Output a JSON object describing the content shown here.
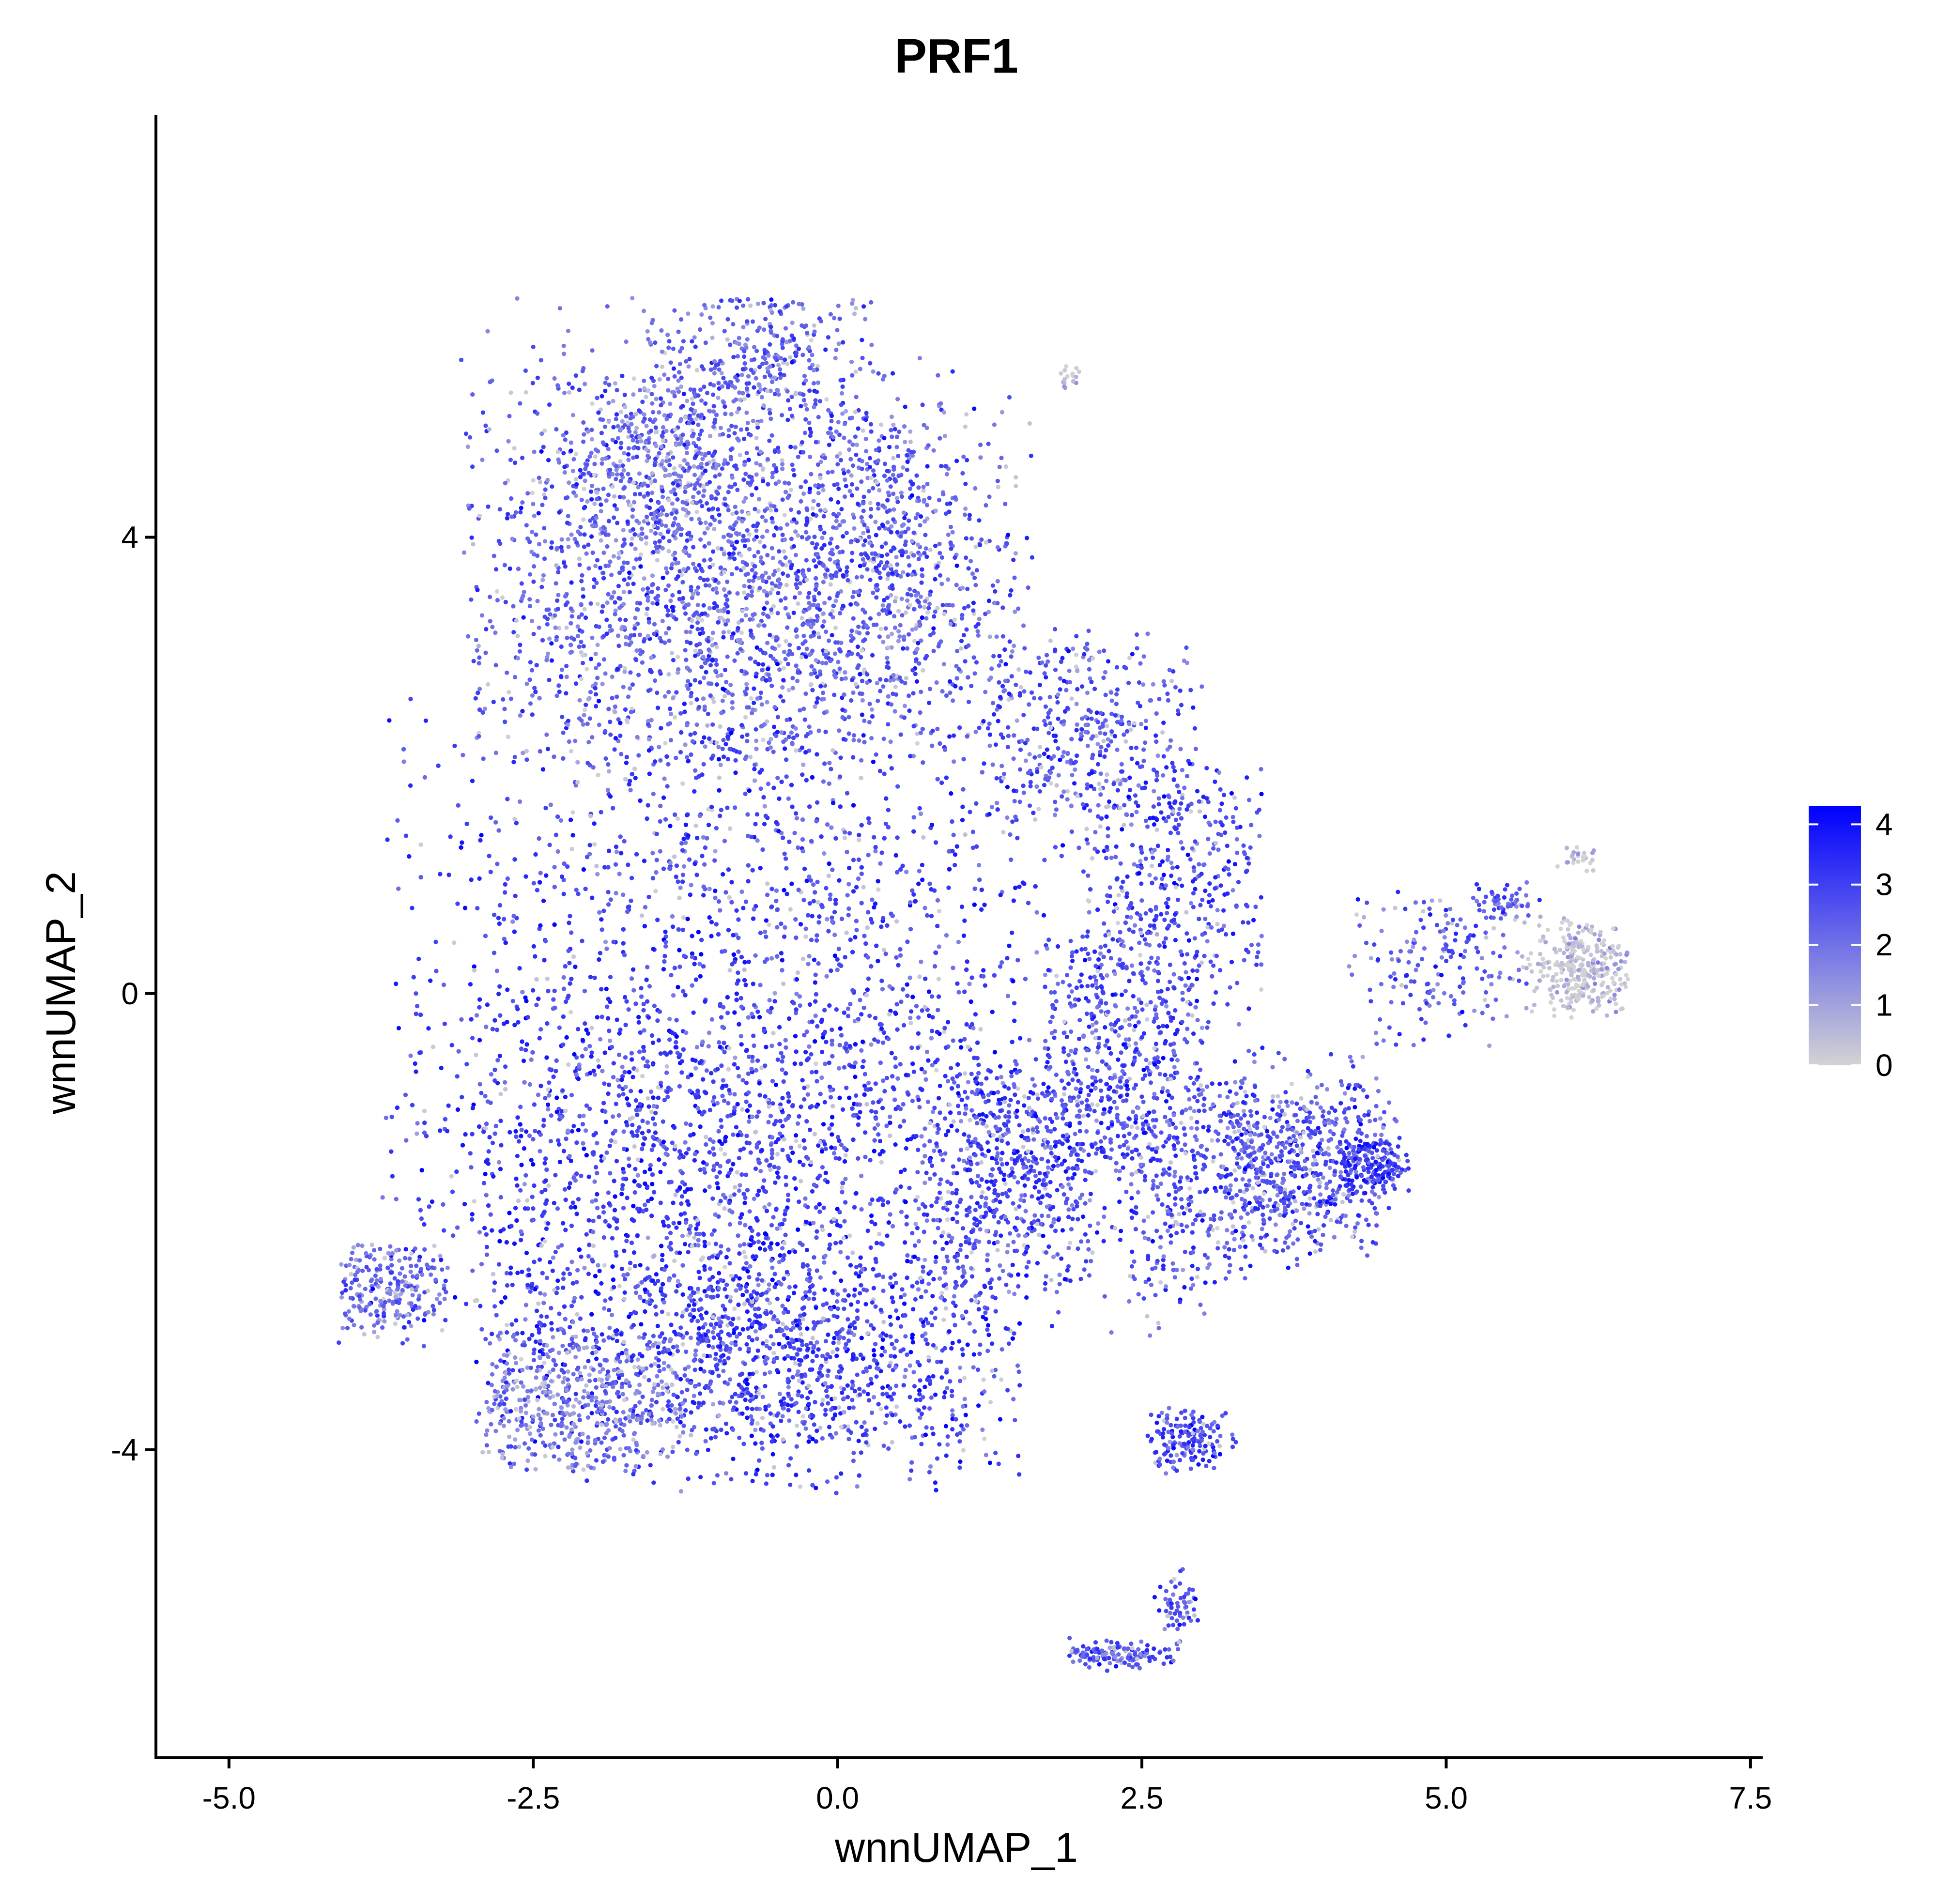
{
  "chart_data": {
    "type": "scatter",
    "title": "PRF1",
    "xlabel": "wnnUMAP_1",
    "ylabel": "wnnUMAP_2",
    "xlim": [
      -5.6,
      7.6
    ],
    "ylim": [
      -6.7,
      7.7
    ],
    "x_ticks": [
      -5.0,
      -2.5,
      0.0,
      2.5,
      5.0,
      7.5
    ],
    "x_tick_labels": [
      "-5.0",
      "-2.5",
      "0.0",
      "2.5",
      "5.0",
      "7.5"
    ],
    "y_ticks": [
      -4,
      0,
      4
    ],
    "y_tick_labels": [
      "-4",
      "0",
      "4"
    ],
    "grid": false,
    "legend": {
      "type": "colorbar",
      "placement": "right",
      "min": 0,
      "max": 4.3,
      "ticks": [
        0,
        1,
        2,
        3,
        4
      ],
      "tick_labels": [
        "0",
        "1",
        "2",
        "3",
        "4"
      ],
      "color_low": "#D3D3D3",
      "color_high": "#0000FF"
    },
    "regions": [
      {
        "cx": -1.0,
        "cy": 3.6,
        "sx": 1.1,
        "sy": 1.0,
        "n": 2400,
        "mean_expr": 2.4,
        "clip": [
          -3.1,
          1.6,
          2.0,
          6.1
        ]
      },
      {
        "cx": -0.6,
        "cy": 5.6,
        "sx": 0.5,
        "sy": 0.4,
        "n": 280,
        "mean_expr": 2.3,
        "clip": [
          -1.6,
          0.4,
          5.0,
          6.1
        ]
      },
      {
        "cx": 0.5,
        "cy": 3.9,
        "sx": 0.5,
        "sy": 0.8,
        "n": 420,
        "mean_expr": 2.5,
        "clip": [
          -0.3,
          1.5,
          2.5,
          5.2
        ]
      },
      {
        "cx": -1.5,
        "cy": 4.8,
        "sx": 0.5,
        "sy": 0.4,
        "n": 300,
        "mean_expr": 2.0,
        "clip": [
          -2.6,
          -0.4,
          4.0,
          5.5
        ]
      },
      {
        "cx": -0.6,
        "cy": 0.6,
        "sx": 1.6,
        "sy": 1.2,
        "n": 3200,
        "mean_expr": 2.9,
        "clip": [
          -3.7,
          3.4,
          -1.4,
          2.8
        ]
      },
      {
        "cx": 2.0,
        "cy": 2.3,
        "sx": 0.6,
        "sy": 0.5,
        "n": 380,
        "mean_expr": 2.7,
        "clip": [
          1.2,
          3.0,
          1.5,
          3.2
        ]
      },
      {
        "cx": 2.8,
        "cy": 1.0,
        "sx": 0.5,
        "sy": 0.6,
        "n": 380,
        "mean_expr": 2.8,
        "clip": [
          2.0,
          3.5,
          -0.3,
          2.0
        ]
      },
      {
        "cx": -1.1,
        "cy": -1.5,
        "sx": 1.3,
        "sy": 0.8,
        "n": 2600,
        "mean_expr": 3.0,
        "clip": [
          -3.8,
          2.0,
          -3.0,
          0.0
        ]
      },
      {
        "cx": -0.6,
        "cy": -3.2,
        "sx": 1.2,
        "sy": 0.5,
        "n": 1800,
        "mean_expr": 2.9,
        "clip": [
          -3.0,
          1.5,
          -4.4,
          -2.0
        ]
      },
      {
        "cx": -2.2,
        "cy": -3.6,
        "sx": 0.5,
        "sy": 0.35,
        "n": 420,
        "mean_expr": 1.7,
        "clip": [
          -2.9,
          -1.2,
          -4.2,
          -3.0
        ]
      },
      {
        "cx": -3.7,
        "cy": -2.6,
        "sx": 0.3,
        "sy": 0.25,
        "n": 240,
        "mean_expr": 2.2,
        "clip": [
          -4.1,
          -3.2,
          -3.1,
          -2.2
        ]
      },
      {
        "cx": 1.4,
        "cy": -1.6,
        "sx": 0.5,
        "sy": 0.6,
        "n": 600,
        "mean_expr": 2.8,
        "clip": [
          0.6,
          2.2,
          -2.8,
          -0.6
        ]
      },
      {
        "cx": 2.3,
        "cy": -0.6,
        "sx": 0.5,
        "sy": 0.6,
        "n": 500,
        "mean_expr": 2.7,
        "clip": [
          1.7,
          3.0,
          -1.6,
          0.6
        ]
      },
      {
        "cx": 2.7,
        "cy": -1.9,
        "sx": 0.25,
        "sy": 0.6,
        "n": 200,
        "mean_expr": 2.7,
        "clip": [
          2.2,
          3.1,
          -3.0,
          -1.0
        ]
      },
      {
        "cx": 3.3,
        "cy": -1.5,
        "sx": 0.3,
        "sy": 0.5,
        "n": 300,
        "mean_expr": 2.6,
        "clip": [
          2.9,
          3.8,
          -2.5,
          -0.5
        ]
      },
      {
        "cx": 3.9,
        "cy": -1.5,
        "sx": 0.4,
        "sy": 0.4,
        "n": 500,
        "mean_expr": 2.6,
        "clip": [
          3.2,
          4.6,
          -2.3,
          -0.4
        ]
      },
      {
        "cx": 4.4,
        "cy": -1.5,
        "sx": 0.15,
        "sy": 0.12,
        "n": 160,
        "mean_expr": 3.1,
        "clip": [
          4.1,
          4.7,
          -1.9,
          -1.1
        ]
      },
      {
        "cx": 4.9,
        "cy": 0.3,
        "sx": 0.4,
        "sy": 0.4,
        "n": 180,
        "mean_expr": 2.4,
        "clip": [
          4.2,
          5.6,
          -0.6,
          0.9
        ]
      },
      {
        "cx": 5.5,
        "cy": 0.8,
        "sx": 0.12,
        "sy": 0.1,
        "n": 50,
        "mean_expr": 2.5,
        "clip": [
          5.2,
          5.8,
          0.5,
          1.0
        ]
      },
      {
        "cx": 6.1,
        "cy": 0.2,
        "sx": 0.22,
        "sy": 0.2,
        "n": 320,
        "mean_expr": 0.3,
        "clip": [
          5.6,
          6.5,
          -0.3,
          0.7
        ]
      },
      {
        "cx": 6.1,
        "cy": 1.2,
        "sx": 0.06,
        "sy": 0.05,
        "n": 25,
        "mean_expr": 0.2,
        "clip": [
          5.9,
          6.3,
          1.0,
          1.3
        ]
      },
      {
        "cx": 1.9,
        "cy": 5.4,
        "sx": 0.05,
        "sy": 0.04,
        "n": 18,
        "mean_expr": 0.3,
        "clip": [
          1.7,
          2.0,
          5.3,
          5.5
        ]
      },
      {
        "cx": 2.9,
        "cy": -3.9,
        "sx": 0.15,
        "sy": 0.13,
        "n": 160,
        "mean_expr": 2.8,
        "clip": [
          2.5,
          3.3,
          -4.3,
          -3.5
        ]
      },
      {
        "cx": 2.3,
        "cy": -5.8,
        "sx": 0.25,
        "sy": 0.05,
        "n": 140,
        "mean_expr": 2.5,
        "clip": [
          1.9,
          2.8,
          -6.0,
          -5.6
        ]
      },
      {
        "cx": 2.8,
        "cy": -5.4,
        "sx": 0.08,
        "sy": 0.15,
        "n": 60,
        "mean_expr": 2.5,
        "clip": [
          2.6,
          3.0,
          -5.8,
          -4.6
        ]
      }
    ]
  }
}
